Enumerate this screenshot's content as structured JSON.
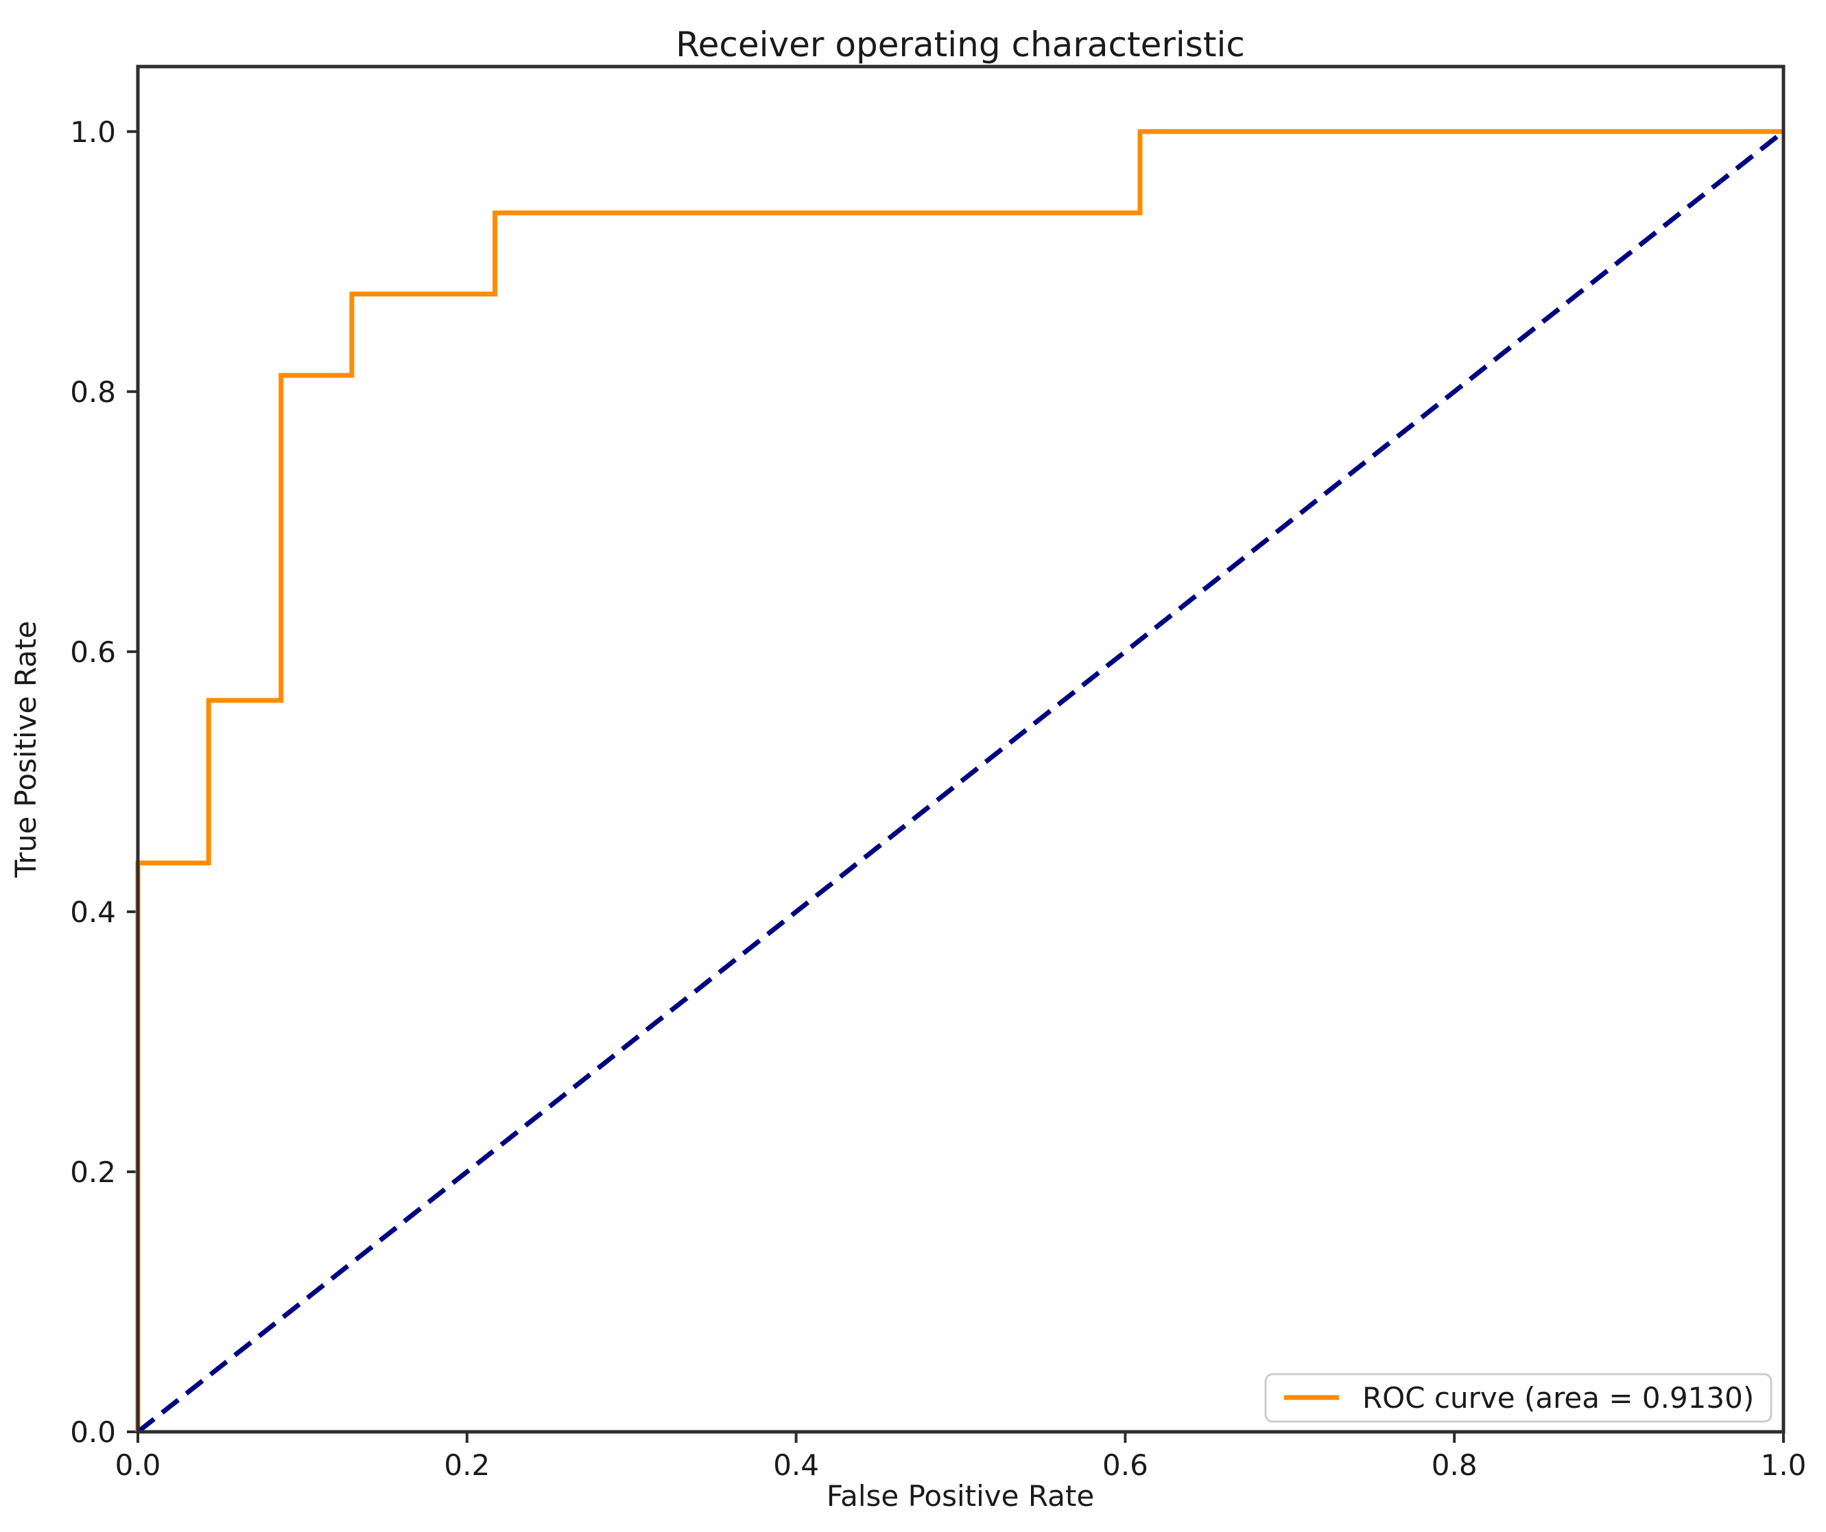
{
  "title": "Receiver operating characteristic",
  "axes": {
    "xlabel": "False Positive Rate",
    "ylabel": "True Positive Rate",
    "x_tick_labels": [
      "0.0",
      "0.2",
      "0.4",
      "0.6",
      "0.8",
      "1.0"
    ],
    "y_tick_labels": [
      "0.0",
      "0.2",
      "0.4",
      "0.6",
      "0.8",
      "1.0"
    ],
    "xlim": [
      0.0,
      1.0
    ],
    "ylim": [
      0.0,
      1.05
    ]
  },
  "legend": {
    "label": "ROC curve (area = 0.9130)",
    "position": "lower right"
  },
  "colors": {
    "roc_curve": "#FF8C00",
    "chance_line": "#000080",
    "spine": "#2e2e2e",
    "tick": "#2e2e2e",
    "legend_border": "#cccccc",
    "background": "#ffffff"
  },
  "chart_data": {
    "type": "line",
    "title": "Receiver operating characteristic",
    "xlabel": "False Positive Rate",
    "ylabel": "True Positive Rate",
    "xlim": [
      0.0,
      1.0
    ],
    "ylim": [
      0.0,
      1.05
    ],
    "grid": false,
    "legend_position": "lower right",
    "auc": 0.913,
    "series": [
      {
        "name": "ROC curve (area = 0.9130)",
        "color": "#FF8C00",
        "style": "solid",
        "x": [
          0.0,
          0.0,
          0.043,
          0.043,
          0.087,
          0.087,
          0.13,
          0.13,
          0.217,
          0.217,
          0.609,
          0.609,
          1.0
        ],
        "y": [
          0.0,
          0.4375,
          0.4375,
          0.5625,
          0.5625,
          0.8125,
          0.8125,
          0.875,
          0.875,
          0.9375,
          0.9375,
          1.0,
          1.0
        ]
      },
      {
        "name": "chance-diagonal",
        "color": "#000080",
        "style": "dashed",
        "x": [
          0.0,
          1.0
        ],
        "y": [
          0.0,
          1.0
        ]
      }
    ]
  }
}
